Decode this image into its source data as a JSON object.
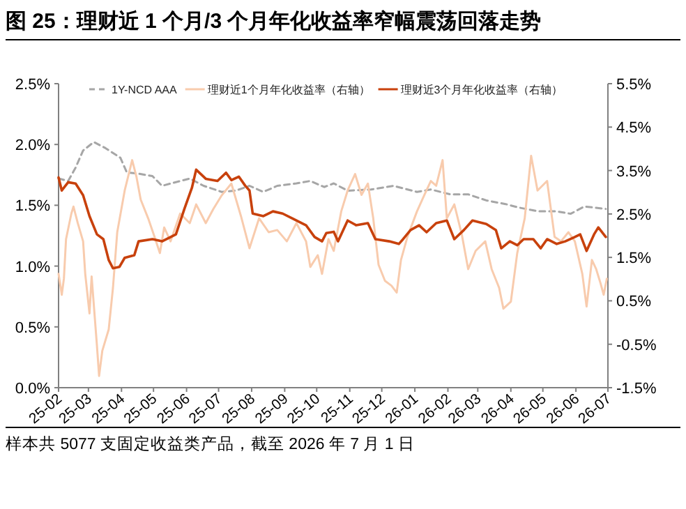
{
  "chart_data": {
    "type": "line",
    "title": "图 25：理财近 1 个月/3 个月年化收益率窄幅震荡回落走势",
    "annotations": [
      "样本共 5077 支固定收益类产品，截至 2026 年 7 月 1 日"
    ],
    "xlim": [
      "2025-02-01",
      "2026-07-01"
    ],
    "xticks": [
      {
        "value": "2025-02-01",
        "label": "25-02"
      },
      {
        "value": "2025-03-01",
        "label": "25-03"
      },
      {
        "value": "2025-04-01",
        "label": "25-04"
      },
      {
        "value": "2025-05-01",
        "label": "25-05"
      },
      {
        "value": "2025-06-01",
        "label": "25-06"
      },
      {
        "value": "2025-07-01",
        "label": "25-07"
      },
      {
        "value": "2025-08-01",
        "label": "25-08"
      },
      {
        "value": "2025-09-01",
        "label": "25-09"
      },
      {
        "value": "2025-10-01",
        "label": "25-10"
      },
      {
        "value": "2025-11-01",
        "label": "25-11"
      },
      {
        "value": "2025-12-01",
        "label": "25-12"
      },
      {
        "value": "2026-01-01",
        "label": "26-01"
      },
      {
        "value": "2026-02-01",
        "label": "26-02"
      },
      {
        "value": "2026-03-01",
        "label": "26-03"
      },
      {
        "value": "2026-04-01",
        "label": "26-04"
      },
      {
        "value": "2026-05-01",
        "label": "26-05"
      },
      {
        "value": "2026-06-01",
        "label": "26-06"
      },
      {
        "value": "2026-07-01",
        "label": "26-07"
      }
    ],
    "ylim": [
      0,
      2.5
    ],
    "yticks": [
      {
        "value": 0,
        "label": "0.0%"
      },
      {
        "value": 0.5,
        "label": "0.5%"
      },
      {
        "value": 1,
        "label": "1.0%"
      },
      {
        "value": 1.5,
        "label": "1.5%"
      },
      {
        "value": 2,
        "label": "2.0%"
      },
      {
        "value": 2.5,
        "label": "2.5%"
      }
    ],
    "y2lim": [
      -1.5,
      5.5
    ],
    "y2ticks": [
      {
        "value": -1.5,
        "label": "-1.5%"
      },
      {
        "value": -0.5,
        "label": "-0.5%"
      },
      {
        "value": 0.5,
        "label": "0.5%"
      },
      {
        "value": 1.5,
        "label": "1.5%"
      },
      {
        "value": 2.5,
        "label": "2.5%"
      },
      {
        "value": 3.5,
        "label": "3.5%"
      },
      {
        "value": 4.5,
        "label": "4.5%"
      },
      {
        "value": 5.5,
        "label": "5.5%"
      }
    ],
    "grid": false,
    "legend": "top",
    "series": [
      {
        "name": "1Y-NCD AAA",
        "color": "#a6a6a6",
        "line_style": "dashed",
        "x": [
          "2025-02-01",
          "2025-02-10",
          "2025-02-17",
          "2025-02-24",
          "2025-03-06",
          "2025-03-17",
          "2025-03-31",
          "2025-04-06",
          "2025-04-17",
          "2025-04-30",
          "2025-05-09",
          "2025-05-22",
          "2025-06-04",
          "2025-06-17",
          "2025-07-04",
          "2025-07-17",
          "2025-07-30",
          "2025-08-12",
          "2025-08-25",
          "2025-09-12",
          "2025-09-25",
          "2025-10-08",
          "2025-10-17",
          "2025-10-30",
          "2025-11-21",
          "2025-12-12",
          "2026-01-03",
          "2026-01-16",
          "2026-02-03",
          "2026-02-20",
          "2026-03-09",
          "2026-03-27",
          "2026-04-09",
          "2026-04-27",
          "2026-05-14",
          "2026-05-27",
          "2026-06-09",
          "2026-06-29"
        ],
        "values": [
          1.72,
          1.7,
          1.81,
          1.95,
          2.02,
          1.97,
          1.89,
          1.77,
          1.76,
          1.74,
          1.66,
          1.69,
          1.72,
          1.66,
          1.61,
          1.62,
          1.66,
          1.61,
          1.66,
          1.68,
          1.7,
          1.65,
          1.68,
          1.62,
          1.63,
          1.66,
          1.61,
          1.63,
          1.59,
          1.59,
          1.54,
          1.51,
          1.48,
          1.45,
          1.45,
          1.43,
          1.49,
          1.47
        ]
      },
      {
        "name": "理财近1个月年化收益率（右轴）",
        "color": "#f8cbad",
        "line_style": "solid",
        "axis": "y2",
        "x": [
          "2025-02-01",
          "2025-02-04",
          "2025-02-06",
          "2025-02-08",
          "2025-02-13",
          "2025-02-15",
          "2025-02-19",
          "2025-02-24",
          "2025-02-26",
          "2025-03-02",
          "2025-03-04",
          "2025-03-09",
          "2025-03-11",
          "2025-03-14",
          "2025-03-20",
          "2025-03-24",
          "2025-03-28",
          "2025-04-04",
          "2025-04-11",
          "2025-04-15",
          "2025-04-19",
          "2025-04-26",
          "2025-05-02",
          "2025-05-07",
          "2025-05-11",
          "2025-05-17",
          "2025-05-26",
          "2025-06-04",
          "2025-06-10",
          "2025-06-19",
          "2025-06-26",
          "2025-07-04",
          "2025-07-13",
          "2025-07-22",
          "2025-07-30",
          "2025-08-08",
          "2025-08-17",
          "2025-08-25",
          "2025-09-03",
          "2025-09-12",
          "2025-09-21",
          "2025-09-25",
          "2025-10-02",
          "2025-10-06",
          "2025-10-12",
          "2025-10-17",
          "2025-10-24",
          "2025-10-30",
          "2025-11-06",
          "2025-11-12",
          "2025-11-18",
          "2025-11-23",
          "2025-11-28",
          "2025-12-04",
          "2025-12-10",
          "2025-12-15",
          "2025-12-19",
          "2025-12-25",
          "2026-01-03",
          "2026-01-10",
          "2026-01-16",
          "2026-01-21",
          "2026-01-27",
          "2026-01-31",
          "2026-02-07",
          "2026-02-14",
          "2026-02-20",
          "2026-02-27",
          "2026-03-08",
          "2026-03-14",
          "2026-03-21",
          "2026-03-25",
          "2026-04-01",
          "2026-04-07",
          "2026-04-14",
          "2026-04-20",
          "2026-04-26",
          "2026-05-05",
          "2026-05-12",
          "2026-05-18",
          "2026-05-25",
          "2026-05-31",
          "2026-06-07",
          "2026-06-11",
          "2026-06-16",
          "2026-06-20",
          "2026-06-24",
          "2026-06-27",
          "2026-06-30"
        ],
        "values": [
          1.12,
          0.64,
          1.01,
          1.92,
          2.51,
          2.67,
          2.29,
          1.87,
          1.12,
          0.21,
          1.06,
          -0.54,
          -1.23,
          -0.65,
          -0.16,
          0.8,
          2.08,
          3.04,
          3.74,
          3.36,
          2.83,
          2.4,
          1.97,
          1.6,
          2.19,
          1.87,
          2.51,
          2.29,
          2.72,
          2.29,
          2.61,
          2.93,
          3.2,
          2.45,
          1.71,
          2.4,
          2.08,
          2.13,
          1.87,
          2.29,
          1.87,
          1.28,
          1.55,
          1.12,
          1.92,
          1.65,
          2.56,
          3.04,
          3.42,
          2.94,
          3.2,
          2.4,
          1.33,
          0.96,
          0.85,
          0.69,
          1.44,
          1.97,
          2.56,
          2.94,
          3.26,
          3.15,
          3.74,
          2.4,
          2.72,
          2.03,
          1.23,
          1.65,
          1.87,
          1.23,
          0.8,
          0.32,
          0.48,
          1.6,
          2.4,
          3.84,
          3.04,
          3.26,
          1.97,
          1.87,
          2.08,
          1.87,
          1.12,
          0.37,
          1.44,
          1.23,
          0.91,
          0.64,
          1.01
        ]
      },
      {
        "name": "理财近3个月年化收益率（右轴）",
        "color": "#c8410c",
        "line_style": "solid",
        "axis": "y2",
        "x": [
          "2025-02-01",
          "2025-02-04",
          "2025-02-10",
          "2025-02-17",
          "2025-02-24",
          "2025-03-02",
          "2025-03-09",
          "2025-03-15",
          "2025-03-20",
          "2025-03-24",
          "2025-03-30",
          "2025-04-04",
          "2025-04-13",
          "2025-04-17",
          "2025-04-30",
          "2025-05-09",
          "2025-05-22",
          "2025-05-30",
          "2025-06-06",
          "2025-06-10",
          "2025-06-19",
          "2025-06-30",
          "2025-07-08",
          "2025-07-13",
          "2025-07-20",
          "2025-07-26",
          "2025-07-30",
          "2025-08-02",
          "2025-08-12",
          "2025-08-21",
          "2025-08-30",
          "2025-09-08",
          "2025-09-21",
          "2025-09-29",
          "2025-10-06",
          "2025-10-10",
          "2025-10-17",
          "2025-10-21",
          "2025-10-30",
          "2025-11-07",
          "2025-11-18",
          "2025-11-25",
          "2025-12-08",
          "2025-12-17",
          "2025-12-21",
          "2025-12-28",
          "2026-01-05",
          "2026-01-12",
          "2026-01-21",
          "2026-01-31",
          "2026-02-07",
          "2026-02-16",
          "2026-02-24",
          "2026-03-09",
          "2026-03-18",
          "2026-03-23",
          "2026-03-31",
          "2026-04-07",
          "2026-04-13",
          "2026-04-22",
          "2026-04-29",
          "2026-05-05",
          "2026-05-14",
          "2026-05-22",
          "2026-05-31",
          "2026-06-05",
          "2026-06-11",
          "2026-06-18",
          "2026-06-22",
          "2026-06-29"
        ],
        "values": [
          3.34,
          3.04,
          3.23,
          3.2,
          2.93,
          2.45,
          2.03,
          1.92,
          1.44,
          1.25,
          1.28,
          1.49,
          1.55,
          1.87,
          1.92,
          1.87,
          2.03,
          2.62,
          3.1,
          3.52,
          3.31,
          3.26,
          3.45,
          3.28,
          3.36,
          3.15,
          3.04,
          2.51,
          2.45,
          2.56,
          2.51,
          2.4,
          2.24,
          1.97,
          1.87,
          2.06,
          2.09,
          1.87,
          2.35,
          2.24,
          2.29,
          1.92,
          1.87,
          1.81,
          1.92,
          2.13,
          2.24,
          2.08,
          2.29,
          2.35,
          1.92,
          2.13,
          2.35,
          2.27,
          2.13,
          1.71,
          1.87,
          1.78,
          1.92,
          1.92,
          1.71,
          1.92,
          1.81,
          1.87,
          1.97,
          2.03,
          1.65,
          2.03,
          2.19,
          1.97
        ]
      }
    ]
  }
}
